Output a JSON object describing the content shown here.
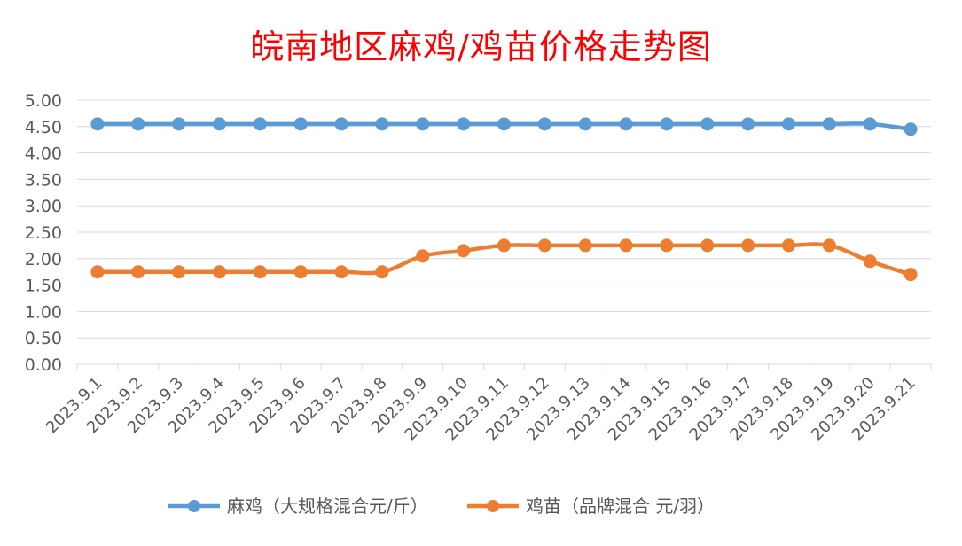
{
  "chart_data": {
    "type": "line",
    "title": "皖南地区麻鸡/鸡苗价格走势图",
    "xlabel": "",
    "ylabel": "",
    "categories": [
      "2023.9.1",
      "2023.9.2",
      "2023.9.3",
      "2023.9.4",
      "2023.9.5",
      "2023.9.6",
      "2023.9.7",
      "2023.9.8",
      "2023.9.9",
      "2023.9.10",
      "2023.9.11",
      "2023.9.12",
      "2023.9.13",
      "2023.9.14",
      "2023.9.15",
      "2023.9.16",
      "2023.9.17",
      "2023.9.18",
      "2023.9.19",
      "2023.9.20",
      "2023.9.21"
    ],
    "yticks": [
      "0.00",
      "0.50",
      "1.00",
      "1.50",
      "2.00",
      "2.50",
      "3.00",
      "3.50",
      "4.00",
      "4.50",
      "5.00"
    ],
    "ylim": [
      0,
      5
    ],
    "grid": true,
    "legend_position": "bottom",
    "series": [
      {
        "name": "麻鸡（大规格混合元/斤）",
        "color": "#5b9bd5",
        "values": [
          4.55,
          4.55,
          4.55,
          4.55,
          4.55,
          4.55,
          4.55,
          4.55,
          4.55,
          4.55,
          4.55,
          4.55,
          4.55,
          4.55,
          4.55,
          4.55,
          4.55,
          4.55,
          4.55,
          4.55,
          4.45
        ]
      },
      {
        "name": "鸡苗（品牌混合 元/羽）",
        "color": "#ed7d31",
        "values": [
          1.75,
          1.75,
          1.75,
          1.75,
          1.75,
          1.75,
          1.75,
          1.75,
          2.05,
          2.15,
          2.25,
          2.25,
          2.25,
          2.25,
          2.25,
          2.25,
          2.25,
          2.25,
          2.25,
          1.95,
          1.7
        ]
      }
    ]
  }
}
